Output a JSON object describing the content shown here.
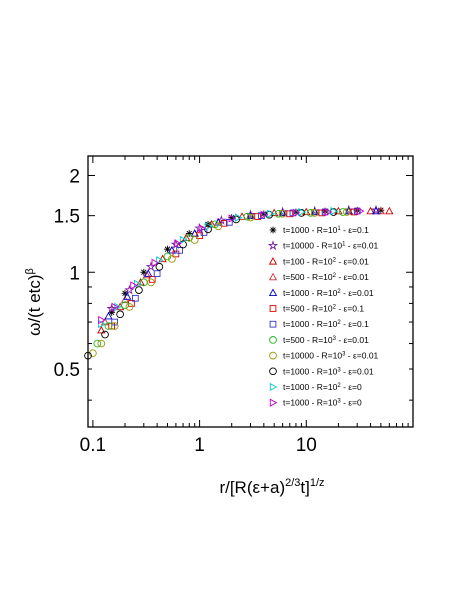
{
  "chart_data": {
    "type": "scatter",
    "title": "",
    "xlabel": "r/[R(ε+a)^{2/3}t]^{1/z}",
    "ylabel": "ω/(t etc)^β",
    "xscale": "log",
    "yscale": "log",
    "xlim": [
      0.09,
      100
    ],
    "ylim": [
      0.33,
      2.3
    ],
    "x_ticks": [
      "0.1",
      "1",
      "10"
    ],
    "y_ticks": [
      "0.5",
      "1",
      "1.5",
      "2"
    ],
    "legend_position": "right",
    "series": [
      {
        "name": "t=1000 - R=10^1 - ε=0.1",
        "marker": "asterisk",
        "color": "#000000",
        "points": [
          [
            0.15,
            0.75
          ],
          [
            0.2,
            0.86
          ],
          [
            0.3,
            1.0
          ],
          [
            0.5,
            1.18
          ],
          [
            0.8,
            1.32
          ],
          [
            1.2,
            1.41
          ],
          [
            2,
            1.48
          ],
          [
            4,
            1.52
          ],
          [
            8,
            1.54
          ],
          [
            15,
            1.55
          ],
          [
            30,
            1.56
          ],
          [
            50,
            1.56
          ]
        ]
      },
      {
        "name": "t=10000 - R=10^1 - ε=0.01",
        "marker": "star",
        "color": "#7a1fa2",
        "points": [
          [
            0.15,
            0.77
          ],
          [
            0.22,
            0.88
          ],
          [
            0.35,
            1.04
          ],
          [
            0.6,
            1.22
          ],
          [
            1.0,
            1.37
          ],
          [
            1.6,
            1.45
          ],
          [
            3,
            1.51
          ],
          [
            6,
            1.54
          ],
          [
            12,
            1.55
          ],
          [
            25,
            1.56
          ],
          [
            45,
            1.56
          ]
        ]
      },
      {
        "name": "t=100 - R=10^2 - ε=0.01",
        "marker": "triangle-up",
        "color": "#cc0000",
        "points": [
          [
            0.12,
            0.66
          ],
          [
            0.18,
            0.78
          ],
          [
            0.28,
            0.93
          ],
          [
            0.45,
            1.1
          ],
          [
            0.75,
            1.28
          ],
          [
            1.3,
            1.41
          ],
          [
            2.5,
            1.49
          ],
          [
            5,
            1.53
          ],
          [
            10,
            1.54
          ],
          [
            20,
            1.55
          ],
          [
            40,
            1.55
          ],
          [
            60,
            1.55
          ]
        ]
      },
      {
        "name": "t=500 - R=10^2 - ε=0.01",
        "marker": "triangle-up",
        "color": "#cc3333",
        "points": [
          [
            0.13,
            0.7
          ],
          [
            0.2,
            0.82
          ],
          [
            0.32,
            0.98
          ],
          [
            0.55,
            1.17
          ],
          [
            0.9,
            1.32
          ],
          [
            1.5,
            1.43
          ],
          [
            3,
            1.5
          ],
          [
            6,
            1.53
          ],
          [
            12,
            1.54
          ],
          [
            25,
            1.55
          ],
          [
            50,
            1.55
          ]
        ]
      },
      {
        "name": "t=1000 - R=10^2 - ε=0.01",
        "marker": "triangle-up",
        "color": "#0000cc",
        "points": [
          [
            0.14,
            0.73
          ],
          [
            0.21,
            0.84
          ],
          [
            0.33,
            0.99
          ],
          [
            0.55,
            1.17
          ],
          [
            0.9,
            1.32
          ],
          [
            1.5,
            1.43
          ],
          [
            3,
            1.5
          ],
          [
            6,
            1.53
          ],
          [
            12,
            1.54
          ],
          [
            25,
            1.55
          ],
          [
            45,
            1.55
          ]
        ]
      },
      {
        "name": "t=500 - R=10^2 - ε=0.1",
        "marker": "square",
        "color": "#dd0000",
        "points": [
          [
            0.15,
            0.68
          ],
          [
            0.23,
            0.8
          ],
          [
            0.36,
            0.95
          ],
          [
            0.6,
            1.14
          ],
          [
            1.0,
            1.3
          ],
          [
            1.7,
            1.42
          ],
          [
            3.5,
            1.49
          ],
          [
            7,
            1.52
          ],
          [
            14,
            1.53
          ],
          [
            28,
            1.54
          ]
        ]
      },
      {
        "name": "t=1000 - R=10^2 - ε=0.1",
        "marker": "square",
        "color": "#3333cc",
        "points": [
          [
            0.16,
            0.7
          ],
          [
            0.25,
            0.83
          ],
          [
            0.4,
            0.99
          ],
          [
            0.65,
            1.17
          ],
          [
            1.1,
            1.33
          ],
          [
            1.9,
            1.43
          ],
          [
            3.8,
            1.5
          ],
          [
            7.5,
            1.53
          ],
          [
            15,
            1.54
          ],
          [
            30,
            1.55
          ]
        ]
      },
      {
        "name": "t=500 - R=10^3 - ε=0.01",
        "marker": "circle",
        "color": "#22bb22",
        "points": [
          [
            0.11,
            0.6
          ],
          [
            0.14,
            0.68
          ],
          [
            0.2,
            0.79
          ],
          [
            0.3,
            0.93
          ],
          [
            0.5,
            1.12
          ],
          [
            0.8,
            1.28
          ],
          [
            1.4,
            1.41
          ],
          [
            2.8,
            1.49
          ],
          [
            5.5,
            1.52
          ],
          [
            11,
            1.53
          ],
          [
            22,
            1.54
          ]
        ]
      },
      {
        "name": "t=10000 - R=10^3 - ε=0.01",
        "marker": "circle",
        "color": "#999900",
        "points": [
          [
            0.1,
            0.56
          ],
          [
            0.12,
            0.6
          ],
          [
            0.16,
            0.68
          ],
          [
            0.22,
            0.78
          ],
          [
            0.35,
            0.93
          ],
          [
            0.55,
            1.1
          ],
          [
            0.9,
            1.26
          ],
          [
            1.5,
            1.39
          ],
          [
            3,
            1.48
          ],
          [
            6,
            1.52
          ],
          [
            12,
            1.53
          ],
          [
            24,
            1.54
          ]
        ]
      },
      {
        "name": "t=1000 - R=10^3 - ε=0.01",
        "marker": "circle",
        "color": "#000000",
        "points": [
          [
            0.09,
            0.55
          ],
          [
            0.13,
            0.64
          ],
          [
            0.18,
            0.74
          ],
          [
            0.27,
            0.88
          ],
          [
            0.42,
            1.04
          ],
          [
            0.7,
            1.22
          ],
          [
            1.2,
            1.36
          ],
          [
            2.2,
            1.46
          ],
          [
            4.5,
            1.51
          ],
          [
            9,
            1.53
          ],
          [
            18,
            1.54
          ]
        ]
      },
      {
        "name": "t=1000 - R=10^2 - ε=0",
        "marker": "triangle-right",
        "color": "#00cccc",
        "points": [
          [
            0.12,
            0.69
          ],
          [
            0.17,
            0.78
          ],
          [
            0.26,
            0.92
          ],
          [
            0.42,
            1.09
          ],
          [
            0.7,
            1.26
          ],
          [
            1.2,
            1.39
          ],
          [
            2.3,
            1.48
          ],
          [
            4.6,
            1.52
          ],
          [
            9,
            1.54
          ],
          [
            18,
            1.55
          ]
        ]
      },
      {
        "name": "t=1000 - R=10^3 - ε=0",
        "marker": "triangle-right",
        "color": "#cc00cc",
        "points": [
          [
            0.12,
            0.71
          ],
          [
            0.16,
            0.78
          ],
          [
            0.24,
            0.91
          ],
          [
            0.38,
            1.07
          ],
          [
            0.62,
            1.23
          ],
          [
            1.05,
            1.37
          ],
          [
            2,
            1.47
          ],
          [
            4,
            1.51
          ],
          [
            8,
            1.53
          ],
          [
            16,
            1.54
          ],
          [
            32,
            1.55
          ]
        ]
      }
    ]
  }
}
